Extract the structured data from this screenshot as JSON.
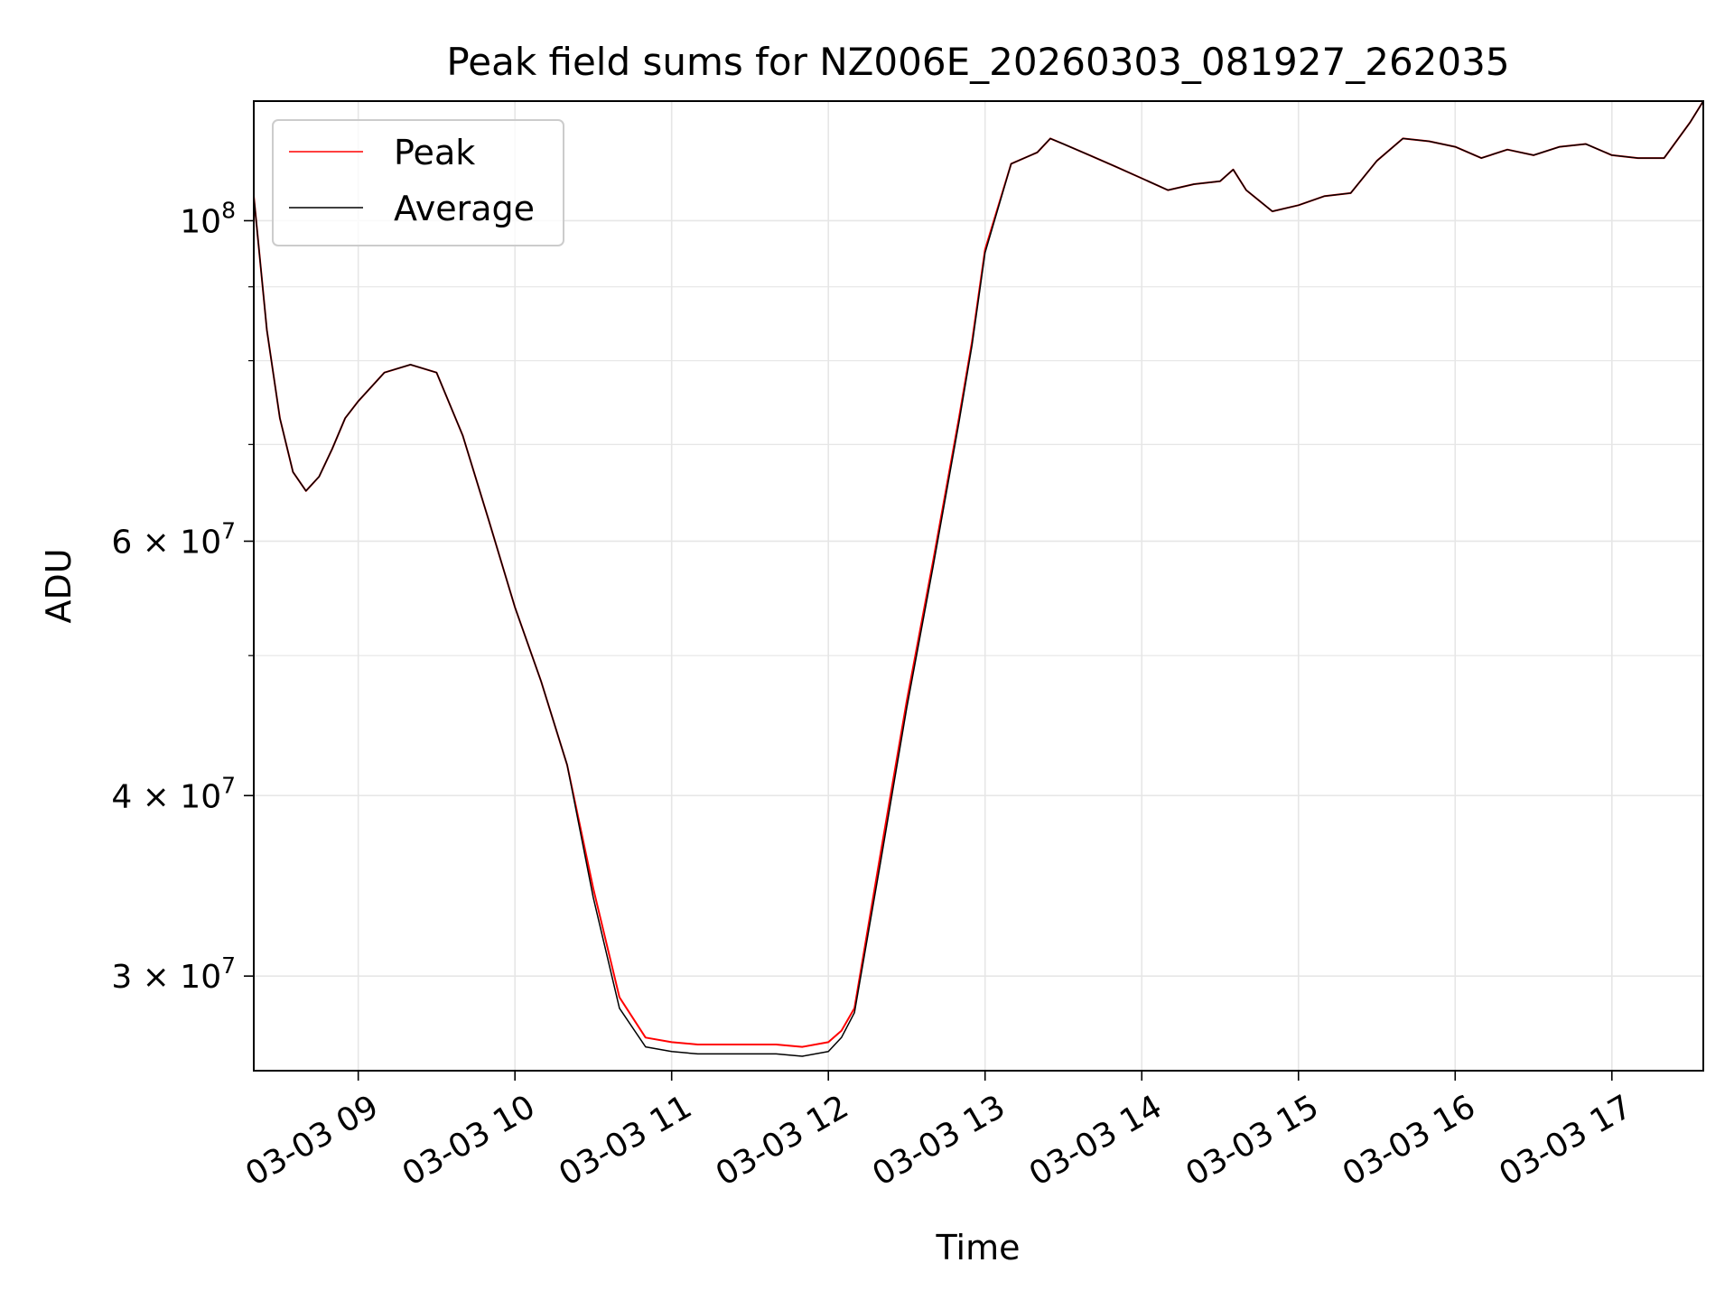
{
  "chart_data": {
    "type": "line",
    "title": "Peak field sums for NZ006E_20260303_081927_262035",
    "xlabel": "Time",
    "ylabel": "ADU",
    "yscale": "log",
    "grid": true,
    "legend_position": "top-left",
    "x_tick_labels": [
      "03-03 09",
      "03-03 10",
      "03-03 11",
      "03-03 12",
      "03-03 13",
      "03-03 14",
      "03-03 15",
      "03-03 16",
      "03-03 17"
    ],
    "y_tick_labels": [
      {
        "value": 30000000,
        "mantissa": "3",
        "exponent": "7"
      },
      {
        "value": 40000000,
        "mantissa": "4",
        "exponent": "7"
      },
      {
        "value": 60000000,
        "mantissa": "6",
        "exponent": "7"
      },
      {
        "value": 100000000,
        "mantissa": "",
        "exponent": "8"
      }
    ],
    "xlim": [
      "03-03 08:20",
      "03-03 17:35"
    ],
    "ylim": [
      25800000,
      121000000
    ],
    "x": [
      "08:20",
      "08:25",
      "08:30",
      "08:35",
      "08:40",
      "08:45",
      "08:50",
      "08:55",
      "09:00",
      "09:10",
      "09:20",
      "09:30",
      "09:40",
      "09:50",
      "10:00",
      "10:10",
      "10:20",
      "10:30",
      "10:40",
      "10:50",
      "11:00",
      "11:10",
      "11:20",
      "11:30",
      "11:40",
      "11:50",
      "12:00",
      "12:05",
      "12:10",
      "12:20",
      "12:30",
      "12:40",
      "12:50",
      "12:55",
      "13:00",
      "13:10",
      "13:20",
      "13:25",
      "13:30",
      "13:40",
      "13:50",
      "14:00",
      "14:10",
      "14:20",
      "14:30",
      "14:35",
      "14:40",
      "14:50",
      "15:00",
      "15:10",
      "15:20",
      "15:30",
      "15:40",
      "15:50",
      "16:00",
      "16:10",
      "16:20",
      "16:30",
      "16:40",
      "16:50",
      "17:00",
      "17:10",
      "17:20",
      "17:30",
      "17:35"
    ],
    "series": [
      {
        "name": "Peak",
        "color": "#ff0000",
        "values": [
          104000000,
          84000000,
          73000000,
          67000000,
          65000000,
          66500000,
          69500000,
          73000000,
          75000000,
          78500000,
          79500000,
          78500000,
          71000000,
          62000000,
          54000000,
          48000000,
          42000000,
          34500000,
          29000000,
          27200000,
          27000000,
          26900000,
          26900000,
          26900000,
          26900000,
          26800000,
          27000000,
          27500000,
          28500000,
          36500000,
          46500000,
          58000000,
          73000000,
          82500000,
          95500000,
          109500000,
          111500000,
          114000000,
          113000000,
          111000000,
          109000000,
          107000000,
          105000000,
          106000000,
          106500000,
          108500000,
          105000000,
          101500000,
          102500000,
          104000000,
          104500000,
          110000000,
          114000000,
          113500000,
          112500000,
          110500000,
          112000000,
          111000000,
          112500000,
          113000000,
          111000000,
          110500000,
          110500000,
          117000000,
          121000000
        ]
      },
      {
        "name": "Average",
        "color": "#000000",
        "values": [
          104000000,
          84000000,
          73000000,
          67000000,
          65000000,
          66500000,
          69500000,
          73000000,
          75000000,
          78500000,
          79500000,
          78500000,
          71000000,
          62000000,
          54000000,
          48000000,
          42000000,
          34000000,
          28500000,
          26800000,
          26600000,
          26500000,
          26500000,
          26500000,
          26500000,
          26400000,
          26600000,
          27200000,
          28300000,
          36000000,
          46000000,
          57500000,
          72500000,
          82000000,
          95000000,
          109500000,
          111500000,
          114000000,
          113000000,
          111000000,
          109000000,
          107000000,
          105000000,
          106000000,
          106500000,
          108500000,
          105000000,
          101500000,
          102500000,
          104000000,
          104500000,
          110000000,
          114000000,
          113500000,
          112500000,
          110500000,
          112000000,
          111000000,
          112500000,
          113000000,
          111000000,
          110500000,
          110500000,
          117000000,
          121000000
        ]
      }
    ]
  }
}
